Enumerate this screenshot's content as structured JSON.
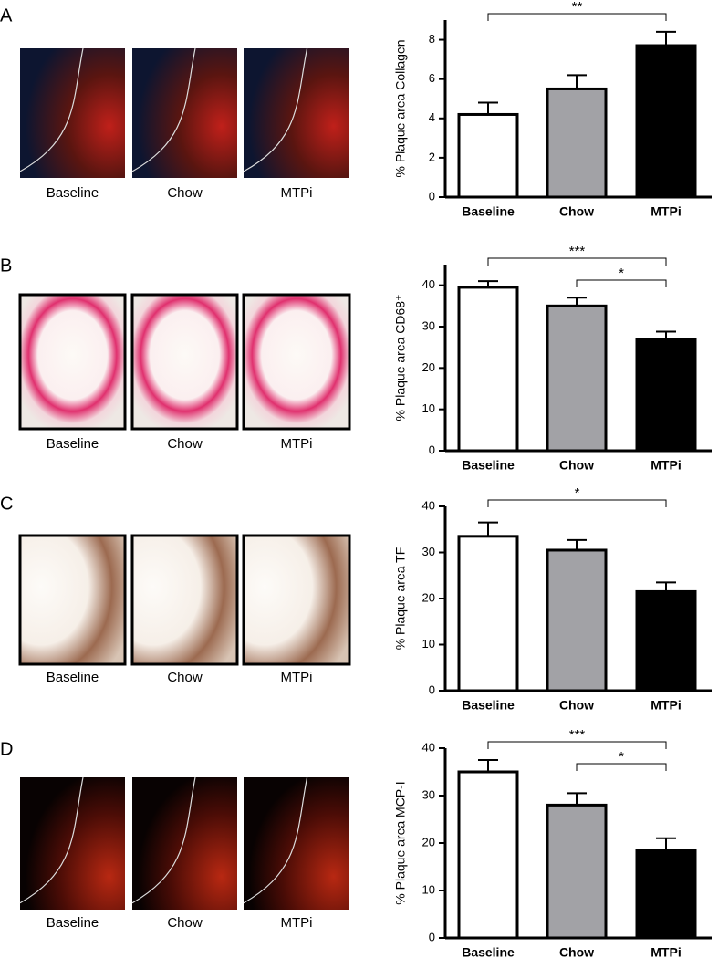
{
  "panels": [
    {
      "label": "A",
      "images": [
        "Baseline",
        "Chow",
        "MTPi"
      ]
    },
    {
      "label": "B",
      "images": [
        "Baseline",
        "Chow",
        "MTPi"
      ]
    },
    {
      "label": "C",
      "images": [
        "Baseline",
        "Chow",
        "MTPi"
      ]
    },
    {
      "label": "D",
      "images": [
        "Baseline",
        "Chow",
        "MTPi"
      ]
    }
  ],
  "chart_data": [
    {
      "type": "bar",
      "ylabel": "% Plaque area Collagen",
      "categories": [
        "Baseline",
        "Chow",
        "MTPi"
      ],
      "values": [
        4.2,
        5.5,
        7.7
      ],
      "errors": [
        0.6,
        0.7,
        0.7
      ],
      "colors": [
        "#ffffff",
        "#a2a2a6",
        "#000000"
      ],
      "ylim": [
        0,
        9
      ],
      "yticks": [
        0,
        2,
        4,
        6,
        8
      ],
      "annotations": [
        {
          "text": "**",
          "between": [
            "Baseline",
            "MTPi"
          ]
        }
      ]
    },
    {
      "type": "bar",
      "ylabel": "% Plaque area CD68⁺",
      "categories": [
        "Baseline",
        "Chow",
        "MTPi"
      ],
      "values": [
        39.5,
        35,
        27
      ],
      "errors": [
        1.5,
        2,
        1.8
      ],
      "colors": [
        "#ffffff",
        "#a2a2a6",
        "#000000"
      ],
      "ylim": [
        0,
        45
      ],
      "yticks": [
        0,
        10,
        20,
        30,
        40
      ],
      "annotations": [
        {
          "text": "***",
          "between": [
            "Baseline",
            "MTPi"
          ]
        },
        {
          "text": "*",
          "between": [
            "Chow",
            "MTPi"
          ]
        }
      ]
    },
    {
      "type": "bar",
      "ylabel": "% Plaque area TF",
      "categories": [
        "Baseline",
        "Chow",
        "MTPi"
      ],
      "values": [
        33.5,
        30.5,
        21.5
      ],
      "errors": [
        3,
        2.2,
        2
      ],
      "colors": [
        "#ffffff",
        "#a2a2a6",
        "#000000"
      ],
      "ylim": [
        0,
        40
      ],
      "yticks": [
        0,
        10,
        20,
        30,
        40
      ],
      "annotations": [
        {
          "text": "*",
          "between": [
            "Baseline",
            "MTPi"
          ]
        }
      ]
    },
    {
      "type": "bar",
      "ylabel": "% Plaque area MCP-I",
      "categories": [
        "Baseline",
        "Chow",
        "MTPi"
      ],
      "values": [
        35,
        28,
        18.5
      ],
      "errors": [
        2.5,
        2.5,
        2.5
      ],
      "colors": [
        "#ffffff",
        "#a2a2a6",
        "#000000"
      ],
      "ylim": [
        0,
        40
      ],
      "yticks": [
        0,
        10,
        20,
        30,
        40
      ],
      "annotations": [
        {
          "text": "***",
          "between": [
            "Baseline",
            "MTPi"
          ]
        },
        {
          "text": "*",
          "between": [
            "Chow",
            "MTPi"
          ]
        }
      ]
    }
  ]
}
